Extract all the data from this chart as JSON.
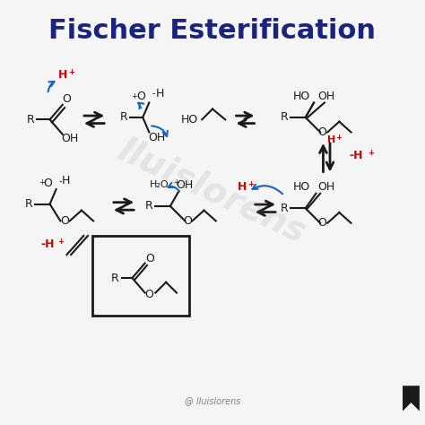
{
  "title": "Fischer Esterification",
  "title_color": "#1a237e",
  "bg_color": "#f5f5f5",
  "black": "#1a1a1a",
  "red": "#cc0000",
  "blue": "#1565c0",
  "watermark": "lluislorens",
  "credit": "@ lluislorens"
}
